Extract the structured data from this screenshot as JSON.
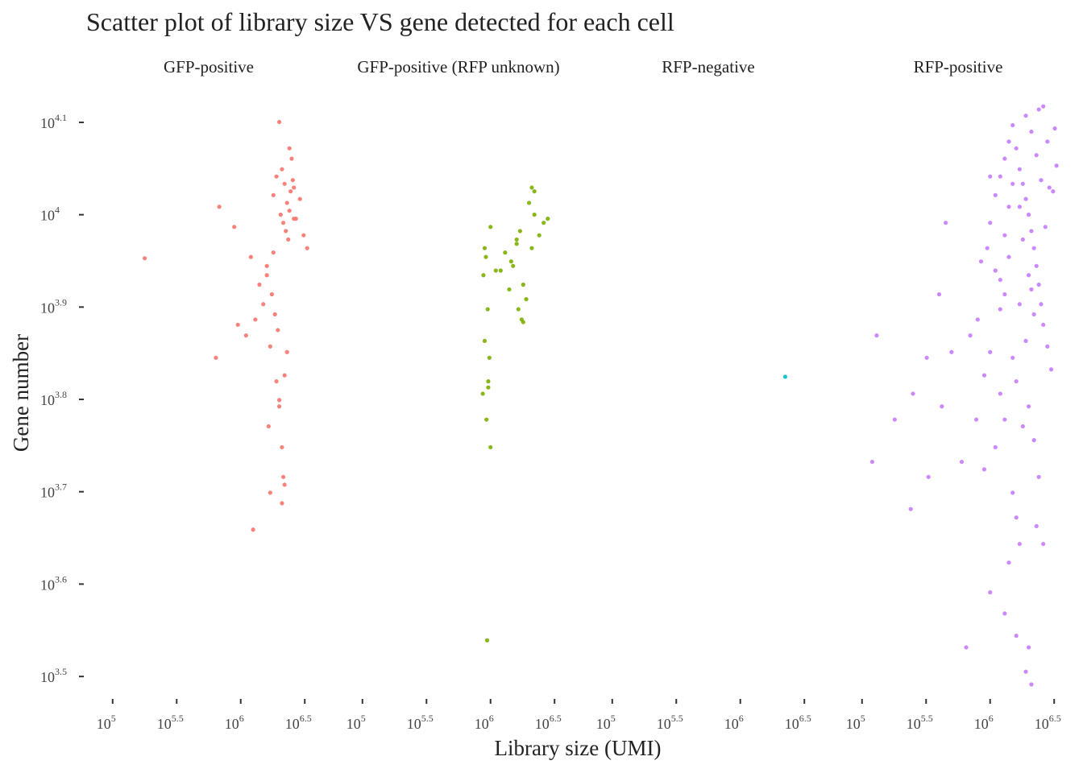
{
  "chart_data": {
    "type": "scatter",
    "title": "Scatter plot of library size VS gene detected for each cell",
    "x_label": "Library size (UMI)",
    "y_label": "Gene number",
    "xlog": true,
    "ylog": true,
    "grid": false,
    "xlim": [
      63096,
      5011872
    ],
    "ylim": [
      3020,
      13183
    ],
    "xticks": [
      {
        "value": 100000,
        "label": [
          "10",
          "5"
        ]
      },
      {
        "value": 316228,
        "label": [
          "10",
          "5.5"
        ]
      },
      {
        "value": 1000000,
        "label": [
          "10",
          "6"
        ]
      },
      {
        "value": 3162278,
        "label": [
          "10",
          "6.5"
        ]
      }
    ],
    "yticks": [
      {
        "value": 3162,
        "label": [
          "10",
          "3.5"
        ]
      },
      {
        "value": 3981,
        "label": [
          "10",
          "3.6"
        ]
      },
      {
        "value": 5012,
        "label": [
          "10",
          "3.7"
        ]
      },
      {
        "value": 6310,
        "label": [
          "10",
          "3.8"
        ]
      },
      {
        "value": 7943,
        "label": [
          "10",
          "3.9"
        ]
      },
      {
        "value": 10000,
        "label": [
          "10",
          "4"
        ]
      },
      {
        "value": 12589,
        "label": [
          "10",
          "4.1"
        ]
      }
    ],
    "series": [
      {
        "name": "GFP-positive",
        "color": "#F8766D",
        "x": [
          178000,
          680000,
          640000,
          890000,
          1200000,
          1500000,
          1700000,
          1800000,
          1900000,
          2000000,
          2100000,
          2200000,
          2300000,
          2400000,
          2500000,
          2600000,
          2700000,
          2900000,
          3100000,
          3300000,
          1600000,
          1750000,
          1850000,
          1950000,
          2050000,
          2150000,
          2250000,
          2350000,
          2450000,
          2550000,
          1400000,
          1300000,
          1100000,
          950000,
          2000000,
          2100000,
          1650000,
          1700000,
          2200000,
          2300000,
          1900000,
          2000000,
          1600000,
          1250000,
          2100000,
          2150000,
          2200000,
          1800000,
          2400000,
          2600000
        ],
        "y": [
          8970,
          10200,
          7000,
          9700,
          9000,
          8000,
          7200,
          10500,
          11000,
          12600,
          11200,
          10800,
          10300,
          10100,
          11500,
          10700,
          9900,
          10400,
          9500,
          9200,
          8600,
          8200,
          7800,
          7500,
          10000,
          9800,
          9600,
          9400,
          10600,
          10900,
          8400,
          7700,
          7400,
          7600,
          6300,
          5600,
          5900,
          5000,
          6700,
          7100,
          6600,
          6200,
          8800,
          4560,
          4870,
          5200,
          5100,
          9100,
          11800,
          9900
        ]
      },
      {
        "name": "GFP-positive (RFP unknown)",
        "color": "#7CAE00",
        "x": [
          880000,
          900000,
          920000,
          950000,
          980000,
          1000000,
          900000,
          870000,
          930000,
          960000,
          1100000,
          1300000,
          1500000,
          1600000,
          1700000,
          1800000,
          2000000,
          2100000,
          2200000,
          2400000,
          2600000,
          2800000,
          2100000,
          1900000,
          1400000,
          1200000,
          1650000,
          1750000,
          960000,
          940000,
          2200000,
          1600000,
          1000000,
          1800000,
          1450000
        ],
        "y": [
          8600,
          9200,
          9000,
          7900,
          7000,
          9700,
          7300,
          6400,
          6000,
          6600,
          8700,
          9100,
          8800,
          9300,
          9600,
          8400,
          10300,
          10700,
          10000,
          9500,
          9800,
          9900,
          9200,
          8100,
          8300,
          8700,
          7900,
          7700,
          6500,
          3460,
          10600,
          9400,
          5600,
          7650,
          8900
        ]
      },
      {
        "name": "RFP-negative",
        "color": "#00BFC4",
        "x": [
          2240000
        ],
        "y": [
          6676
        ]
      },
      {
        "name": "RFP-positive",
        "color": "#C77CFF",
        "x": [
          700000,
          780000,
          850000,
          950000,
          1000000,
          1100000,
          1200000,
          1300000,
          1400000,
          1500000,
          1600000,
          1700000,
          1800000,
          1900000,
          2000000,
          2100000,
          2200000,
          2300000,
          2400000,
          2500000,
          2600000,
          2800000,
          3000000,
          1200000,
          1300000,
          1100000,
          900000,
          1500000,
          1600000,
          1700000,
          1400000,
          1000000,
          1300000,
          650000,
          1600000,
          1900000,
          1700000,
          1800000,
          2000000,
          2200000,
          1500000,
          1400000,
          1300000,
          1200000,
          1100000,
          1000000,
          900000,
          800000,
          1900000,
          2100000,
          2300000,
          2500000,
          2700000,
          3100000,
          3300000,
          2800000,
          2400000,
          2000000,
          2200000,
          2400000,
          1800000,
          1600000,
          1900000,
          2100000,
          1700000,
          1200000,
          1400000,
          1300000,
          600000,
          500000,
          420000,
          330000,
          240000,
          180000,
          120000,
          130000,
          250000,
          320000,
          400000,
          450000,
          2000000,
          2100000,
          2300000,
          2600000,
          2900000,
          3200000,
          1000000,
          1500000,
          2600000
        ],
        "y": [
          7400,
          6000,
          8900,
          9200,
          9800,
          10500,
          11000,
          11500,
          12000,
          12500,
          11800,
          11200,
          10800,
          10400,
          10000,
          9600,
          9200,
          8800,
          8400,
          8000,
          7600,
          7200,
          6800,
          6400,
          6000,
          5600,
          5300,
          5000,
          4700,
          4400,
          4200,
          3900,
          3700,
          3400,
          3500,
          3200,
          10200,
          9400,
          8600,
          7800,
          7000,
          9000,
          8200,
          7900,
          8700,
          7100,
          6700,
          7700,
          12800,
          12300,
          11600,
          10900,
          9700,
          10600,
          11300,
          12000,
          13000,
          6200,
          5700,
          5200,
          5900,
          6600,
          7300,
          8300,
          8000,
          8500,
          10200,
          9500,
          5400,
          7100,
          6200,
          5200,
          4800,
          6000,
          5400,
          7400,
          6400,
          7000,
          8200,
          9800,
          3400,
          3100,
          4600,
          4400,
          10700,
          12400,
          11000,
          10800,
          13100
        ]
      }
    ]
  }
}
